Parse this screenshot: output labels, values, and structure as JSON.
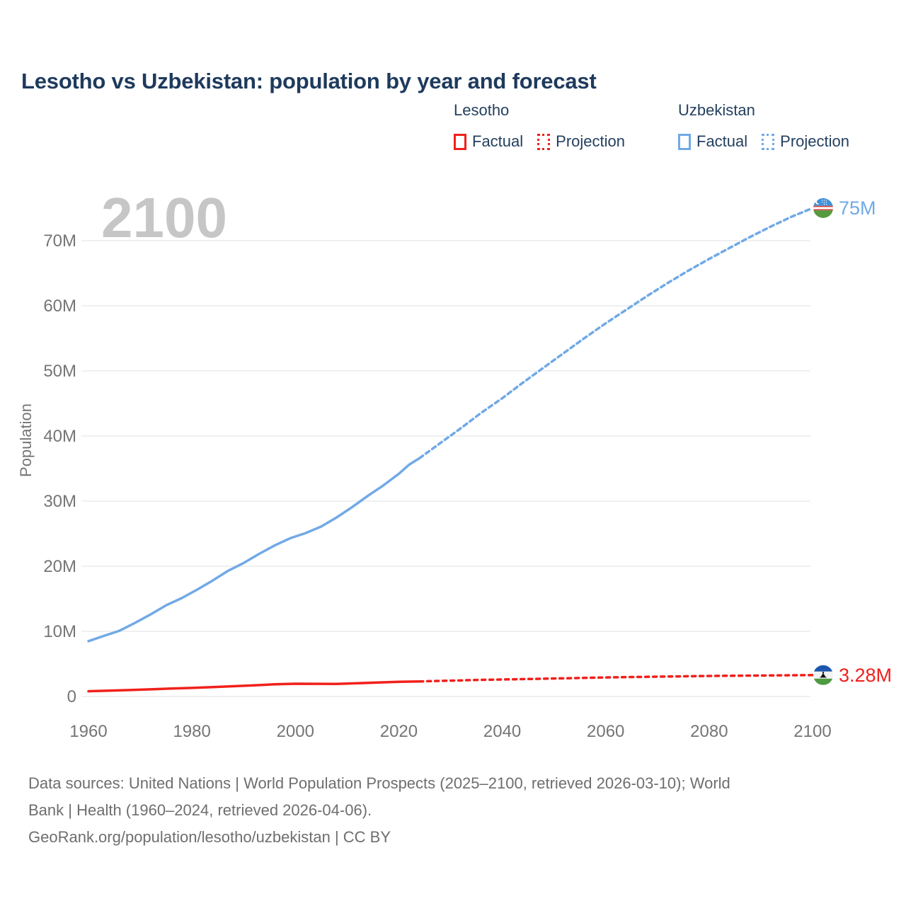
{
  "title": "Lesotho vs Uzbekistan: population by year and forecast",
  "watermark": "2100",
  "legend": {
    "groups": [
      {
        "country": "Lesotho",
        "color": "#f1201b",
        "items": [
          {
            "label": "Factual",
            "style": "solid"
          },
          {
            "label": "Projection",
            "style": "dotted"
          }
        ]
      },
      {
        "country": "Uzbekistan",
        "color": "#71a9e6",
        "items": [
          {
            "label": "Factual",
            "style": "solid"
          },
          {
            "label": "Projection",
            "style": "dotted"
          }
        ]
      }
    ]
  },
  "footer": {
    "lines": [
      "Data sources: United Nations | World Population Prospects (2025–2100, retrieved 2026-03-10); World",
      "Bank | Health (1960–2024, retrieved 2026-04-06).",
      "GeoRank.org/population/lesotho/uzbekistan | CC BY"
    ]
  },
  "chart_data": {
    "type": "line",
    "title": "Lesotho vs Uzbekistan: population by year and forecast",
    "xlabel": "",
    "ylabel": "Population",
    "xlim": [
      1960,
      2100
    ],
    "ylim": [
      0,
      78
    ],
    "grid": true,
    "legend_position": "top-right",
    "x_ticks": [
      {
        "value": 1960,
        "label": "1960"
      },
      {
        "value": 1980,
        "label": "1980"
      },
      {
        "value": 2000,
        "label": "2000"
      },
      {
        "value": 2020,
        "label": "2020"
      },
      {
        "value": 2040,
        "label": "2040"
      },
      {
        "value": 2060,
        "label": "2060"
      },
      {
        "value": 2080,
        "label": "2080"
      },
      {
        "value": 2100,
        "label": "2100"
      }
    ],
    "y_ticks": [
      {
        "value": 0,
        "label": "0"
      },
      {
        "value": 10,
        "label": "10M"
      },
      {
        "value": 20,
        "label": "20M"
      },
      {
        "value": 30,
        "label": "30M"
      },
      {
        "value": 40,
        "label": "40M"
      },
      {
        "value": 50,
        "label": "50M"
      },
      {
        "value": 60,
        "label": "60M"
      },
      {
        "value": 70,
        "label": "70M"
      }
    ],
    "series": [
      {
        "name": "Uzbekistan Factual",
        "color": "#71a9e6",
        "style": "solid",
        "x": [
          1960,
          1963,
          1966,
          1969,
          1972,
          1975,
          1978,
          1981,
          1984,
          1987,
          1990,
          1993,
          1996,
          1999,
          2002,
          2005,
          2008,
          2011,
          2014,
          2017,
          2020,
          2022,
          2024
        ],
        "y": [
          8.5,
          9.3,
          10.1,
          11.3,
          12.6,
          14.0,
          15.1,
          16.4,
          17.8,
          19.3,
          20.5,
          21.9,
          23.2,
          24.3,
          25.1,
          26.1,
          27.5,
          29.1,
          30.8,
          32.4,
          34.2,
          35.6,
          36.6
        ]
      },
      {
        "name": "Uzbekistan Projection",
        "color": "#71a9e6",
        "style": "dashed",
        "dash": "6 5",
        "x": [
          2024,
          2028,
          2032,
          2036,
          2040,
          2044,
          2048,
          2052,
          2056,
          2060,
          2064,
          2068,
          2072,
          2076,
          2080,
          2084,
          2088,
          2092,
          2096,
          2100
        ],
        "y": [
          36.6,
          38.9,
          41.2,
          43.6,
          45.8,
          48.2,
          50.5,
          52.8,
          55.1,
          57.3,
          59.4,
          61.5,
          63.5,
          65.4,
          67.2,
          68.9,
          70.6,
          72.2,
          73.7,
          75
        ]
      },
      {
        "name": "Lesotho Factual",
        "color": "#f1201b",
        "style": "solid",
        "x": [
          1960,
          1964,
          1968,
          1972,
          1976,
          1980,
          1984,
          1988,
          1992,
          1996,
          2000,
          2004,
          2008,
          2012,
          2016,
          2020,
          2024
        ],
        "y": [
          0.8,
          0.89,
          0.99,
          1.1,
          1.22,
          1.31,
          1.45,
          1.58,
          1.72,
          1.87,
          1.96,
          1.95,
          1.94,
          2.03,
          2.15,
          2.25,
          2.31
        ]
      },
      {
        "name": "Lesotho Projection",
        "color": "#f1201b",
        "style": "dashed",
        "dash": "5 6",
        "x": [
          2024,
          2030,
          2036,
          2042,
          2048,
          2054,
          2060,
          2066,
          2072,
          2078,
          2084,
          2090,
          2096,
          2100
        ],
        "y": [
          2.31,
          2.44,
          2.55,
          2.64,
          2.73,
          2.83,
          2.92,
          3.0,
          3.07,
          3.13,
          3.18,
          3.22,
          3.26,
          3.28
        ]
      }
    ],
    "end_markers": [
      {
        "series": "Uzbekistan",
        "label": "75M",
        "value": 75,
        "color": "#71a9e6",
        "flag": "uzbekistan"
      },
      {
        "series": "Lesotho",
        "label": "3.28M",
        "value": 3.28,
        "color": "#f1201b",
        "flag": "lesotho"
      }
    ]
  }
}
